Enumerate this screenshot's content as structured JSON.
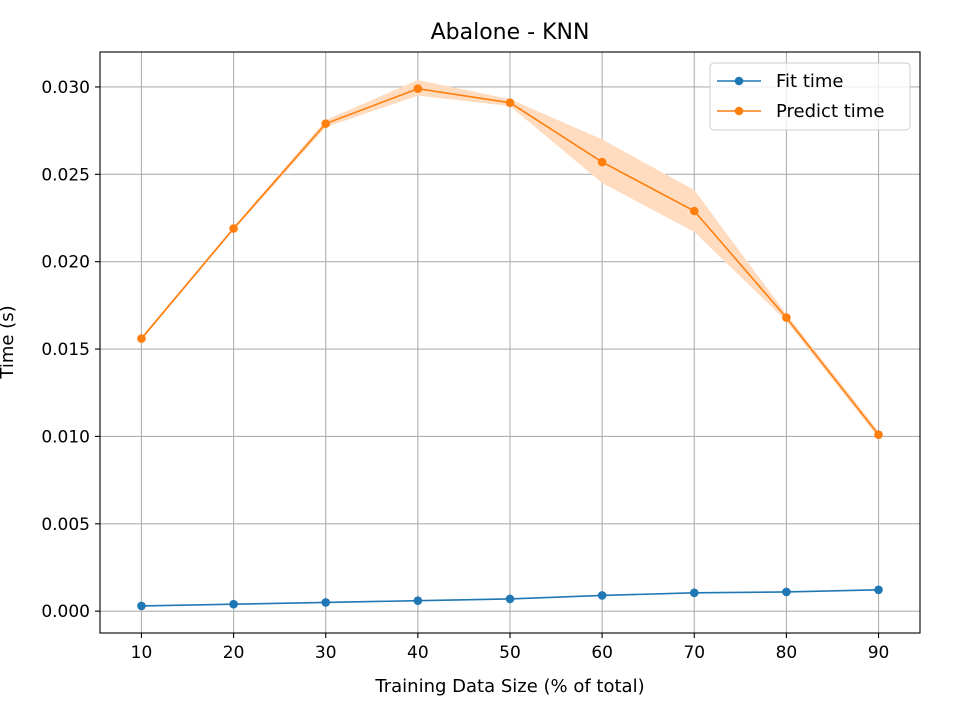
{
  "chart_data": {
    "type": "line",
    "title": "Abalone - KNN",
    "xlabel": "Training Data Size (% of total)",
    "ylabel": "Time (s)",
    "xlim": [
      5.5,
      94.5
    ],
    "ylim": [
      -0.00125,
      0.032
    ],
    "xticks": [
      10,
      20,
      30,
      40,
      50,
      60,
      70,
      80,
      90
    ],
    "xtick_labels": [
      "10",
      "20",
      "30",
      "40",
      "50",
      "60",
      "70",
      "80",
      "90"
    ],
    "yticks": [
      0.0,
      0.005,
      0.01,
      0.015,
      0.02,
      0.025,
      0.03
    ],
    "ytick_labels": [
      "0.000",
      "0.005",
      "0.010",
      "0.015",
      "0.020",
      "0.025",
      "0.030"
    ],
    "grid": true,
    "legend_position": "top-right",
    "x": [
      10,
      20,
      30,
      40,
      50,
      60,
      70,
      80,
      90
    ],
    "series": [
      {
        "name": "Fit time",
        "color": "#1f77b4",
        "values": [
          0.0003,
          0.0004,
          0.0005,
          0.0006,
          0.0007,
          0.0009,
          0.00105,
          0.0011,
          0.00122
        ],
        "band_lower": [
          0.0003,
          0.0004,
          0.0005,
          0.0006,
          0.0007,
          0.0009,
          0.00105,
          0.0011,
          0.00122
        ],
        "band_upper": [
          0.0003,
          0.0004,
          0.0005,
          0.0006,
          0.0007,
          0.0009,
          0.00105,
          0.0011,
          0.00122
        ]
      },
      {
        "name": "Predict time",
        "color": "#ff7f0e",
        "band_color": "#ffdcc0",
        "values": [
          0.0156,
          0.0219,
          0.0279,
          0.0299,
          0.0291,
          0.0257,
          0.0229,
          0.0168,
          0.0101
        ],
        "band_lower": [
          0.0155,
          0.0218,
          0.0277,
          0.0295,
          0.0289,
          0.0245,
          0.0217,
          0.0166,
          0.0099
        ],
        "band_upper": [
          0.0157,
          0.022,
          0.0281,
          0.0304,
          0.0293,
          0.027,
          0.0241,
          0.017,
          0.0103
        ]
      }
    ]
  }
}
